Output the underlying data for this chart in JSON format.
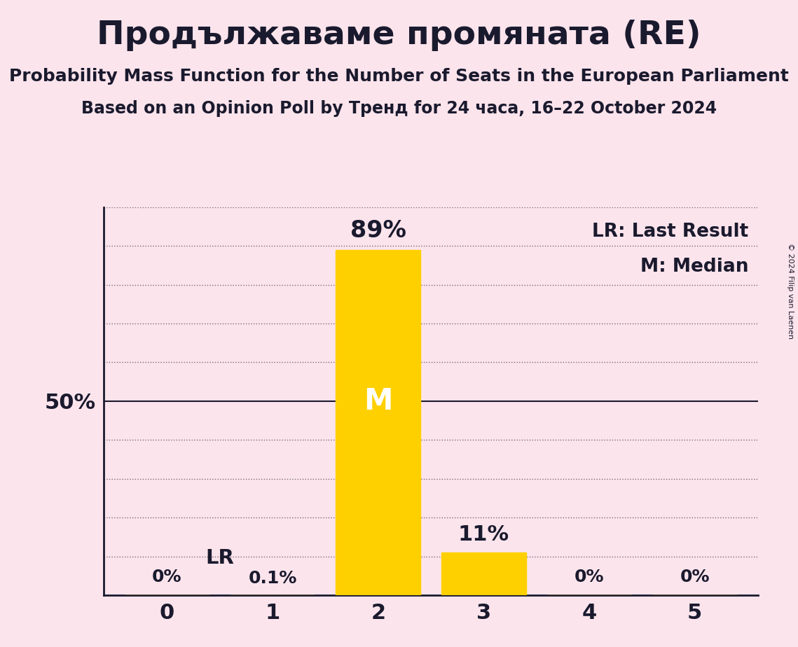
{
  "title": "Продължаваме промяната (RE)",
  "subtitle1": "Probability Mass Function for the Number of Seats in the European Parliament",
  "subtitle2": "Based on an Opinion Poll by Тренд for 24 часа, 16–22 October 2024",
  "copyright": "© 2024 Filip van Laenen",
  "categories": [
    0,
    1,
    2,
    3,
    4,
    5
  ],
  "values": [
    0.0,
    0.1,
    89.0,
    11.0,
    0.0,
    0.0
  ],
  "bar_color": "#FFD000",
  "background_color": "#fce4ec",
  "text_color": "#1a1a2e",
  "label_above": [
    "0%",
    "0.1%",
    "89%",
    "11%",
    "0%",
    "0%"
  ],
  "median_seat": 2,
  "median_label": "M",
  "lr_label": "LR",
  "ytick_label": "50%",
  "ytick_value": 50,
  "legend_lr": "LR: Last Result",
  "legend_m": "M: Median",
  "ylim": [
    0,
    100
  ],
  "grid_interval": 10
}
